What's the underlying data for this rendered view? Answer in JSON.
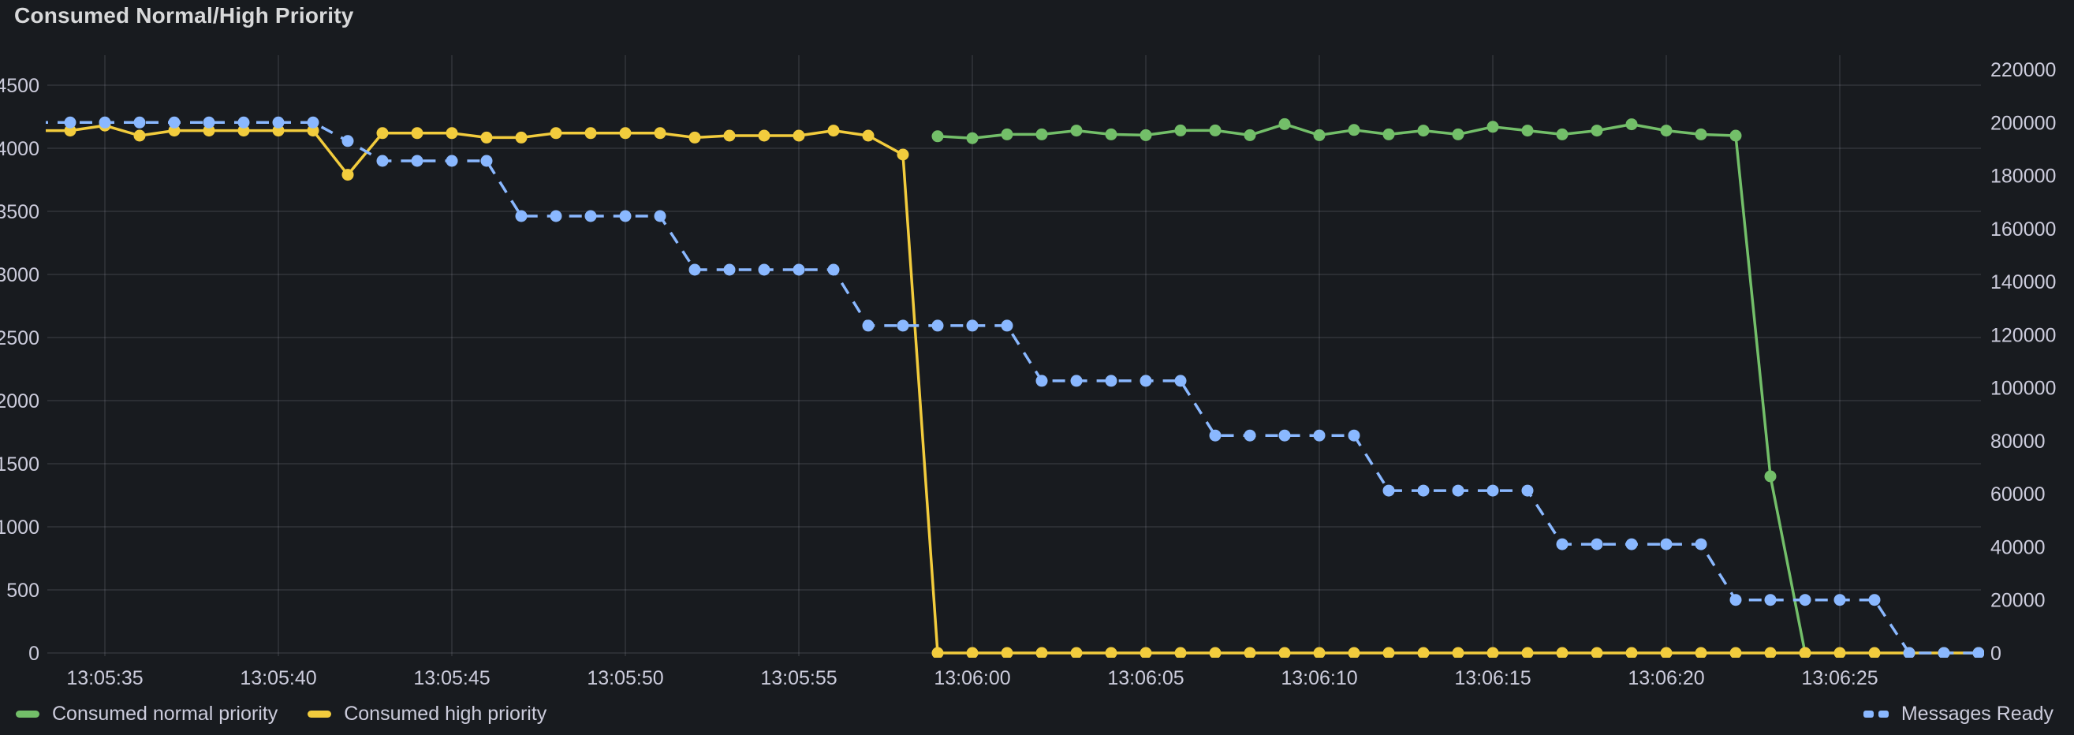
{
  "panel": {
    "title": "Consumed Normal/High Priority",
    "background_color": "#181b1f",
    "title_color": "#d8d9da",
    "grid_color": "rgba(204,204,220,0.11)",
    "tick_text_color": "#ccccdc"
  },
  "chart_data": {
    "type": "line",
    "title": "Consumed Normal/High Priority",
    "x_base_time": "13:05:35",
    "x_unit": "seconds after 13:05:35, one data point per second",
    "x_ticks": [
      {
        "t": 0,
        "label": "13:05:35"
      },
      {
        "t": 5,
        "label": "13:05:40"
      },
      {
        "t": 10,
        "label": "13:05:45"
      },
      {
        "t": 15,
        "label": "13:05:50"
      },
      {
        "t": 20,
        "label": "13:05:55"
      },
      {
        "t": 25,
        "label": "13:06:00"
      },
      {
        "t": 30,
        "label": "13:06:05"
      },
      {
        "t": 35,
        "label": "13:06:10"
      },
      {
        "t": 40,
        "label": "13:06:15"
      },
      {
        "t": 45,
        "label": "13:06:20"
      },
      {
        "t": 50,
        "label": "13:06:25"
      }
    ],
    "y_axis_left": {
      "min": 0,
      "max_tick": 4500,
      "step": 500,
      "ticks": [
        0,
        500,
        1000,
        1500,
        2000,
        2500,
        3000,
        3500,
        4000,
        4500
      ],
      "grid": true
    },
    "y_axis_right": {
      "min": 0,
      "max_tick": 220000,
      "step": 20000,
      "ticks": [
        0,
        20000,
        40000,
        60000,
        80000,
        100000,
        120000,
        140000,
        160000,
        180000,
        200000,
        220000
      ],
      "grid": false
    },
    "legend_position": "bottom",
    "series": [
      {
        "name": "Consumed normal priority",
        "color": "#73bf69",
        "axis": "left",
        "style": "solid",
        "points": [
          [
            24,
            4095
          ],
          [
            25,
            4080
          ],
          [
            26,
            4110
          ],
          [
            27,
            4110
          ],
          [
            28,
            4140
          ],
          [
            29,
            4110
          ],
          [
            30,
            4104
          ],
          [
            31,
            4141
          ],
          [
            32,
            4141
          ],
          [
            33,
            4104
          ],
          [
            34,
            4191
          ],
          [
            35,
            4104
          ],
          [
            36,
            4145
          ],
          [
            37,
            4110
          ],
          [
            38,
            4140
          ],
          [
            39,
            4110
          ],
          [
            40,
            4170
          ],
          [
            41,
            4140
          ],
          [
            42,
            4110
          ],
          [
            43,
            4140
          ],
          [
            44,
            4190
          ],
          [
            45,
            4140
          ],
          [
            46,
            4110
          ],
          [
            47,
            4100
          ],
          [
            48,
            1400
          ],
          [
            49,
            0
          ]
        ]
      },
      {
        "name": "Consumed high priority",
        "color": "#f2cc3d",
        "axis": "left",
        "style": "solid",
        "points": [
          [
            -2,
            4140
          ],
          [
            -1,
            4140
          ],
          [
            0,
            4180
          ],
          [
            1,
            4100
          ],
          [
            2,
            4140
          ],
          [
            3,
            4140
          ],
          [
            4,
            4140
          ],
          [
            5,
            4140
          ],
          [
            6,
            4140
          ],
          [
            7,
            3790
          ],
          [
            8,
            4120
          ],
          [
            9,
            4120
          ],
          [
            10,
            4120
          ],
          [
            11,
            4085
          ],
          [
            12,
            4085
          ],
          [
            13,
            4120
          ],
          [
            14,
            4120
          ],
          [
            15,
            4120
          ],
          [
            16,
            4120
          ],
          [
            17,
            4085
          ],
          [
            18,
            4100
          ],
          [
            19,
            4100
          ],
          [
            20,
            4100
          ],
          [
            21,
            4140
          ],
          [
            22,
            4100
          ],
          [
            23,
            3950
          ],
          [
            24,
            0
          ],
          [
            25,
            0
          ],
          [
            26,
            0
          ],
          [
            27,
            0
          ],
          [
            28,
            0
          ],
          [
            29,
            0
          ],
          [
            30,
            0
          ],
          [
            31,
            0
          ],
          [
            32,
            0
          ],
          [
            33,
            0
          ],
          [
            34,
            0
          ],
          [
            35,
            0
          ],
          [
            36,
            0
          ],
          [
            37,
            0
          ],
          [
            38,
            0
          ],
          [
            39,
            0
          ],
          [
            40,
            0
          ],
          [
            41,
            0
          ],
          [
            42,
            0
          ],
          [
            43,
            0
          ],
          [
            44,
            0
          ],
          [
            45,
            0
          ],
          [
            46,
            0
          ],
          [
            47,
            0
          ],
          [
            48,
            0
          ],
          [
            49,
            0
          ],
          [
            50,
            0
          ],
          [
            51,
            0
          ],
          [
            52,
            0
          ],
          [
            53,
            0
          ],
          [
            54,
            0
          ]
        ]
      },
      {
        "name": "Messages Ready",
        "color": "#8ab8ff",
        "axis": "right",
        "style": "dashed",
        "points": [
          [
            -2,
            200000
          ],
          [
            -1,
            200000
          ],
          [
            0,
            200000
          ],
          [
            1,
            200000
          ],
          [
            2,
            200000
          ],
          [
            3,
            200000
          ],
          [
            4,
            200000
          ],
          [
            5,
            200000
          ],
          [
            6,
            200000
          ],
          [
            7,
            193000
          ],
          [
            8,
            185500
          ],
          [
            9,
            185500
          ],
          [
            10,
            185500
          ],
          [
            11,
            185500
          ],
          [
            12,
            164700
          ],
          [
            13,
            164700
          ],
          [
            14,
            164700
          ],
          [
            15,
            164700
          ],
          [
            16,
            164700
          ],
          [
            17,
            144500
          ],
          [
            18,
            144500
          ],
          [
            19,
            144500
          ],
          [
            20,
            144500
          ],
          [
            21,
            144500
          ],
          [
            22,
            123400
          ],
          [
            23,
            123400
          ],
          [
            24,
            123400
          ],
          [
            25,
            123400
          ],
          [
            26,
            123400
          ],
          [
            27,
            102600
          ],
          [
            28,
            102600
          ],
          [
            29,
            102600
          ],
          [
            30,
            102600
          ],
          [
            31,
            102600
          ],
          [
            32,
            82000
          ],
          [
            33,
            82000
          ],
          [
            34,
            82000
          ],
          [
            35,
            82000
          ],
          [
            36,
            82000
          ],
          [
            37,
            61200
          ],
          [
            38,
            61200
          ],
          [
            39,
            61200
          ],
          [
            40,
            61200
          ],
          [
            41,
            61200
          ],
          [
            42,
            41000
          ],
          [
            43,
            41000
          ],
          [
            44,
            41000
          ],
          [
            45,
            41000
          ],
          [
            46,
            41000
          ],
          [
            47,
            20000
          ],
          [
            48,
            20000
          ],
          [
            49,
            20000
          ],
          [
            50,
            20000
          ],
          [
            51,
            20000
          ],
          [
            52,
            0
          ],
          [
            53,
            0
          ],
          [
            54,
            0
          ]
        ]
      }
    ]
  }
}
